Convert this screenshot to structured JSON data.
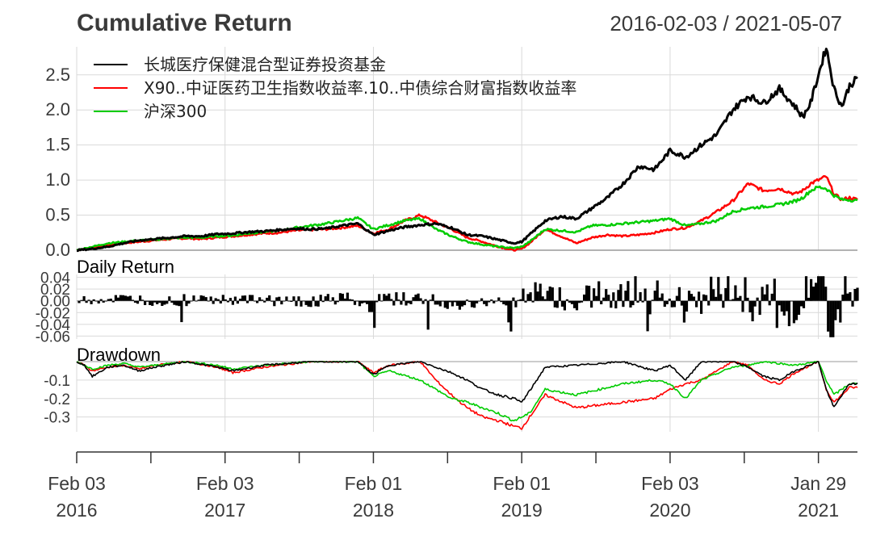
{
  "chart_data": {
    "type": "line",
    "title": "Cumulative Return",
    "date_range": "2016-02-03 / 2021-05-07",
    "x_ticks": [
      {
        "top": "Feb 03",
        "bottom": "2016",
        "t": 0.0
      },
      {
        "top": "Feb 03",
        "bottom": "2017",
        "t": 0.19
      },
      {
        "top": "Feb 01",
        "bottom": "2018",
        "t": 0.38
      },
      {
        "top": "Feb 01",
        "bottom": "2019",
        "t": 0.57
      },
      {
        "top": "Feb 03",
        "bottom": "2020",
        "t": 0.76
      },
      {
        "top": "Jan 29",
        "bottom": "2021",
        "t": 0.95
      }
    ],
    "panels": [
      {
        "name": "Cumulative Return",
        "ylim": [
          0,
          2.9
        ],
        "y_ticks": [
          0.0,
          0.5,
          1.0,
          1.5,
          2.0,
          2.5
        ],
        "y_tick_labels": [
          "0.0",
          "0.5",
          "1.0",
          "1.5",
          "2.0",
          "2.5"
        ],
        "legend": [
          "长城医疗保健混合型证券投资基金",
          "X90..中证医药卫生指数收益率.10..中债综合财富指数收益率",
          "沪深300"
        ],
        "series": [
          {
            "name": "长城医疗保健混合型证券投资基金",
            "color": "#000000",
            "x": [
              0,
              0.02,
              0.04,
              0.06,
              0.08,
              0.1,
              0.12,
              0.14,
              0.16,
              0.18,
              0.2,
              0.22,
              0.24,
              0.26,
              0.28,
              0.3,
              0.32,
              0.34,
              0.36,
              0.38,
              0.4,
              0.42,
              0.44,
              0.46,
              0.48,
              0.5,
              0.52,
              0.54,
              0.56,
              0.57,
              0.58,
              0.6,
              0.62,
              0.64,
              0.66,
              0.68,
              0.7,
              0.72,
              0.74,
              0.76,
              0.78,
              0.8,
              0.82,
              0.84,
              0.86,
              0.88,
              0.9,
              0.92,
              0.93,
              0.94,
              0.95,
              0.96,
              0.97,
              0.98,
              0.99,
              1.0
            ],
            "values": [
              0.0,
              0.02,
              0.05,
              0.1,
              0.14,
              0.16,
              0.18,
              0.2,
              0.2,
              0.23,
              0.24,
              0.26,
              0.27,
              0.29,
              0.31,
              0.3,
              0.31,
              0.35,
              0.38,
              0.22,
              0.28,
              0.33,
              0.36,
              0.38,
              0.32,
              0.22,
              0.2,
              0.15,
              0.1,
              0.12,
              0.22,
              0.42,
              0.48,
              0.45,
              0.6,
              0.75,
              0.95,
              1.2,
              1.15,
              1.42,
              1.33,
              1.5,
              1.65,
              2.0,
              2.2,
              2.1,
              2.3,
              2.05,
              1.9,
              2.1,
              2.5,
              2.9,
              2.3,
              2.05,
              2.35,
              2.45
            ]
          },
          {
            "name": "X90..中证医药卫生指数收益率.10..中债综合财富指数收益率",
            "color": "#ff0000",
            "x": [
              0,
              0.02,
              0.04,
              0.06,
              0.08,
              0.1,
              0.12,
              0.14,
              0.16,
              0.18,
              0.2,
              0.22,
              0.24,
              0.26,
              0.28,
              0.3,
              0.32,
              0.34,
              0.36,
              0.38,
              0.4,
              0.42,
              0.44,
              0.46,
              0.48,
              0.5,
              0.52,
              0.54,
              0.56,
              0.57,
              0.58,
              0.6,
              0.62,
              0.64,
              0.66,
              0.68,
              0.7,
              0.72,
              0.74,
              0.76,
              0.78,
              0.8,
              0.82,
              0.84,
              0.86,
              0.88,
              0.9,
              0.92,
              0.93,
              0.94,
              0.95,
              0.96,
              0.97,
              0.98,
              0.99,
              1.0
            ],
            "values": [
              0.0,
              0.04,
              0.07,
              0.1,
              0.12,
              0.14,
              0.16,
              0.17,
              0.16,
              0.18,
              0.2,
              0.22,
              0.24,
              0.25,
              0.28,
              0.29,
              0.3,
              0.32,
              0.35,
              0.24,
              0.3,
              0.42,
              0.5,
              0.4,
              0.3,
              0.18,
              0.12,
              0.05,
              0.0,
              0.02,
              0.1,
              0.3,
              0.2,
              0.1,
              0.18,
              0.22,
              0.2,
              0.22,
              0.25,
              0.3,
              0.32,
              0.42,
              0.55,
              0.7,
              0.95,
              0.85,
              0.88,
              0.8,
              0.85,
              0.95,
              1.0,
              1.05,
              0.8,
              0.72,
              0.75,
              0.72
            ]
          },
          {
            "name": "沪深300",
            "color": "#00cc00",
            "x": [
              0,
              0.02,
              0.04,
              0.06,
              0.08,
              0.1,
              0.12,
              0.14,
              0.16,
              0.18,
              0.2,
              0.22,
              0.24,
              0.26,
              0.28,
              0.3,
              0.32,
              0.34,
              0.36,
              0.38,
              0.4,
              0.42,
              0.44,
              0.46,
              0.48,
              0.5,
              0.52,
              0.54,
              0.56,
              0.57,
              0.58,
              0.6,
              0.62,
              0.64,
              0.66,
              0.68,
              0.7,
              0.72,
              0.74,
              0.76,
              0.78,
              0.8,
              0.82,
              0.84,
              0.86,
              0.88,
              0.9,
              0.92,
              0.93,
              0.94,
              0.95,
              0.96,
              0.97,
              0.98,
              0.99,
              1.0
            ],
            "values": [
              0.0,
              0.05,
              0.1,
              0.12,
              0.14,
              0.15,
              0.17,
              0.18,
              0.18,
              0.2,
              0.21,
              0.24,
              0.26,
              0.28,
              0.32,
              0.35,
              0.38,
              0.42,
              0.46,
              0.3,
              0.36,
              0.42,
              0.45,
              0.3,
              0.2,
              0.12,
              0.08,
              0.05,
              0.03,
              0.05,
              0.12,
              0.3,
              0.28,
              0.26,
              0.35,
              0.36,
              0.38,
              0.4,
              0.42,
              0.45,
              0.35,
              0.38,
              0.42,
              0.55,
              0.6,
              0.62,
              0.65,
              0.7,
              0.75,
              0.85,
              0.9,
              0.88,
              0.78,
              0.72,
              0.72,
              0.7
            ]
          }
        ]
      },
      {
        "name": "Daily Return",
        "ylim": [
          -0.065,
          0.045
        ],
        "y_ticks": [
          0.04,
          0.02,
          0.0,
          -0.02,
          -0.04,
          -0.06
        ],
        "y_tick_labels": [
          "0.04",
          "0.02",
          "0.00",
          "-0.02",
          "-0.04",
          "-0.06"
        ]
      },
      {
        "name": "Drawdown",
        "ylim": [
          -0.38,
          0.0
        ],
        "y_ticks": [
          -0.1,
          -0.2,
          -0.3
        ],
        "y_tick_labels": [
          "-0.1",
          "-0.2",
          "-0.3"
        ],
        "series": [
          {
            "name": "长城医疗保健混合型证券投资基金",
            "color": "#000000",
            "x": [
              0,
              0.01,
              0.02,
              0.04,
              0.06,
              0.08,
              0.1,
              0.14,
              0.18,
              0.2,
              0.24,
              0.3,
              0.36,
              0.38,
              0.4,
              0.44,
              0.46,
              0.48,
              0.5,
              0.52,
              0.54,
              0.56,
              0.57,
              0.58,
              0.6,
              0.64,
              0.7,
              0.74,
              0.76,
              0.78,
              0.8,
              0.84,
              0.86,
              0.88,
              0.9,
              0.92,
              0.95,
              0.96,
              0.97,
              0.98,
              0.99,
              1.0
            ],
            "values": [
              0,
              -0.02,
              -0.08,
              -0.03,
              -0.02,
              -0.05,
              -0.03,
              0,
              -0.03,
              -0.05,
              -0.02,
              0,
              0,
              -0.07,
              -0.02,
              0,
              -0.03,
              -0.06,
              -0.1,
              -0.15,
              -0.18,
              -0.2,
              -0.22,
              -0.16,
              -0.03,
              -0.02,
              0,
              -0.05,
              -0.02,
              -0.1,
              0,
              0,
              -0.03,
              -0.08,
              -0.1,
              -0.05,
              0,
              -0.15,
              -0.25,
              -0.18,
              -0.12,
              -0.12
            ]
          },
          {
            "name": "X90..中证医药卫生指数收益率.10..中债综合财富指数收益率",
            "color": "#ff0000",
            "x": [
              0,
              0.01,
              0.02,
              0.04,
              0.06,
              0.08,
              0.1,
              0.14,
              0.18,
              0.2,
              0.24,
              0.3,
              0.36,
              0.38,
              0.4,
              0.44,
              0.46,
              0.48,
              0.5,
              0.52,
              0.54,
              0.56,
              0.57,
              0.58,
              0.6,
              0.64,
              0.7,
              0.74,
              0.76,
              0.78,
              0.8,
              0.84,
              0.86,
              0.88,
              0.9,
              0.92,
              0.95,
              0.96,
              0.97,
              0.98,
              0.99,
              1.0
            ],
            "values": [
              0,
              -0.02,
              -0.05,
              -0.03,
              -0.02,
              -0.04,
              -0.02,
              0,
              -0.03,
              -0.06,
              -0.03,
              0,
              0,
              -0.06,
              -0.02,
              0,
              -0.1,
              -0.18,
              -0.25,
              -0.3,
              -0.32,
              -0.35,
              -0.36,
              -0.3,
              -0.18,
              -0.25,
              -0.22,
              -0.2,
              -0.15,
              -0.12,
              -0.1,
              0,
              -0.02,
              -0.1,
              -0.12,
              -0.06,
              0,
              -0.15,
              -0.22,
              -0.18,
              -0.14,
              -0.14
            ]
          },
          {
            "name": "沪深300",
            "color": "#00cc00",
            "x": [
              0,
              0.01,
              0.02,
              0.04,
              0.06,
              0.08,
              0.1,
              0.14,
              0.18,
              0.2,
              0.24,
              0.3,
              0.36,
              0.38,
              0.4,
              0.44,
              0.46,
              0.48,
              0.5,
              0.52,
              0.54,
              0.56,
              0.57,
              0.58,
              0.6,
              0.64,
              0.7,
              0.74,
              0.76,
              0.78,
              0.8,
              0.84,
              0.86,
              0.88,
              0.9,
              0.92,
              0.95,
              0.96,
              0.97,
              0.98,
              0.99,
              1.0
            ],
            "values": [
              0,
              -0.02,
              -0.04,
              -0.02,
              -0.01,
              -0.03,
              -0.02,
              0,
              -0.02,
              -0.04,
              -0.02,
              0,
              0,
              -0.08,
              -0.05,
              -0.1,
              -0.15,
              -0.2,
              -0.22,
              -0.25,
              -0.28,
              -0.32,
              -0.3,
              -0.28,
              -0.15,
              -0.18,
              -0.12,
              -0.1,
              -0.12,
              -0.2,
              -0.1,
              -0.03,
              -0.02,
              0,
              -0.01,
              -0.02,
              0,
              -0.1,
              -0.18,
              -0.15,
              -0.12,
              -0.12
            ]
          }
        ]
      }
    ],
    "grid": true,
    "legend_position": "top-left"
  }
}
